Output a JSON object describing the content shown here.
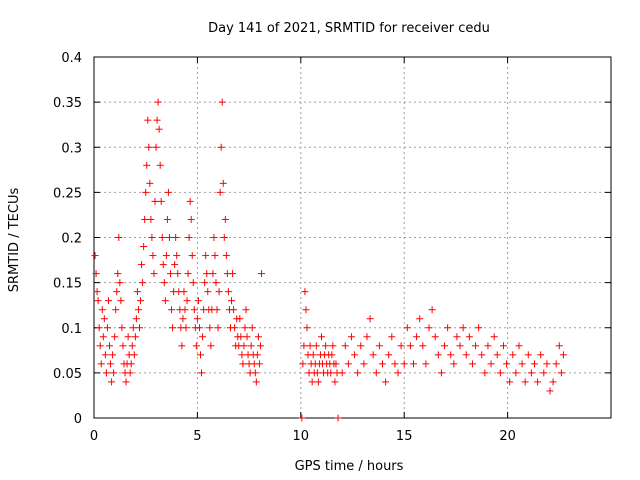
{
  "chart_data": {
    "type": "scatter",
    "title": "Day 141 of 2021, SRMTID for receiver cedu",
    "xlabel": "GPS time / hours",
    "ylabel": "SRMTID / TECUs",
    "xlim": [
      0,
      25
    ],
    "ylim": [
      0,
      0.4
    ],
    "xticks": [
      0,
      5,
      10,
      15,
      20
    ],
    "xtick_labels": [
      "0",
      "5",
      "10",
      "15",
      "20"
    ],
    "yticks": [
      0,
      0.05,
      0.1,
      0.15,
      0.2,
      0.25,
      0.3,
      0.35,
      0.4
    ],
    "ytick_labels": [
      "0",
      "0.05",
      "0.1",
      "0.15",
      "0.2",
      "0.25",
      "0.3",
      "0.35",
      "0.4"
    ],
    "grid": true,
    "marker": "plus",
    "series": [
      {
        "name": "SRMTID",
        "color": "#ff0000",
        "points": [
          [
            0.05,
            0.18
          ],
          [
            0.1,
            0.16
          ],
          [
            0.15,
            0.14
          ],
          [
            0.2,
            0.13
          ],
          [
            0.25,
            0.1
          ],
          [
            0.3,
            0.08
          ],
          [
            0.35,
            0.06
          ],
          [
            0.4,
            0.12
          ],
          [
            0.45,
            0.09
          ],
          [
            0.5,
            0.11
          ],
          [
            0.55,
            0.07
          ],
          [
            0.6,
            0.05
          ],
          [
            0.65,
            0.1
          ],
          [
            0.7,
            0.13
          ],
          [
            0.75,
            0.08
          ],
          [
            0.8,
            0.06
          ],
          [
            0.85,
            0.04
          ],
          [
            0.9,
            0.07
          ],
          [
            0.95,
            0.05
          ],
          [
            1.0,
            0.09
          ],
          [
            1.05,
            0.12
          ],
          [
            1.1,
            0.14
          ],
          [
            1.15,
            0.16
          ],
          [
            1.2,
            0.2
          ],
          [
            1.25,
            0.15
          ],
          [
            1.3,
            0.13
          ],
          [
            1.35,
            0.1
          ],
          [
            1.4,
            0.08
          ],
          [
            1.45,
            0.06
          ],
          [
            1.5,
            0.05
          ],
          [
            1.55,
            0.04
          ],
          [
            1.6,
            0.06
          ],
          [
            1.65,
            0.09
          ],
          [
            1.7,
            0.07
          ],
          [
            1.75,
            0.05
          ],
          [
            1.8,
            0.06
          ],
          [
            1.85,
            0.08
          ],
          [
            1.9,
            0.1
          ],
          [
            1.95,
            0.07
          ],
          [
            2.0,
            0.09
          ],
          [
            2.05,
            0.11
          ],
          [
            2.1,
            0.14
          ],
          [
            2.15,
            0.12
          ],
          [
            2.2,
            0.1
          ],
          [
            2.25,
            0.13
          ],
          [
            2.3,
            0.17
          ],
          [
            2.35,
            0.15
          ],
          [
            2.4,
            0.19
          ],
          [
            2.45,
            0.22
          ],
          [
            2.5,
            0.25
          ],
          [
            2.55,
            0.28
          ],
          [
            2.6,
            0.33
          ],
          [
            2.65,
            0.3
          ],
          [
            2.7,
            0.26
          ],
          [
            2.75,
            0.22
          ],
          [
            2.8,
            0.2
          ],
          [
            2.85,
            0.18
          ],
          [
            2.9,
            0.16
          ],
          [
            2.95,
            0.24
          ],
          [
            3.0,
            0.3
          ],
          [
            3.05,
            0.33
          ],
          [
            3.1,
            0.35
          ],
          [
            3.15,
            0.32
          ],
          [
            3.2,
            0.28
          ],
          [
            3.25,
            0.24
          ],
          [
            3.3,
            0.2
          ],
          [
            3.35,
            0.17
          ],
          [
            3.4,
            0.15
          ],
          [
            3.45,
            0.13
          ],
          [
            3.5,
            0.18
          ],
          [
            3.55,
            0.22
          ],
          [
            3.6,
            0.25
          ],
          [
            3.65,
            0.2
          ],
          [
            3.7,
            0.16
          ],
          [
            3.75,
            0.12
          ],
          [
            3.8,
            0.1
          ],
          [
            3.85,
            0.14
          ],
          [
            3.9,
            0.17
          ],
          [
            3.95,
            0.2
          ],
          [
            4.0,
            0.18
          ],
          [
            4.05,
            0.16
          ],
          [
            4.1,
            0.14
          ],
          [
            4.15,
            0.12
          ],
          [
            4.2,
            0.1
          ],
          [
            4.25,
            0.08
          ],
          [
            4.3,
            0.11
          ],
          [
            4.35,
            0.14
          ],
          [
            4.4,
            0.12
          ],
          [
            4.45,
            0.1
          ],
          [
            4.5,
            0.13
          ],
          [
            4.55,
            0.16
          ],
          [
            4.6,
            0.2
          ],
          [
            4.65,
            0.24
          ],
          [
            4.7,
            0.22
          ],
          [
            4.75,
            0.18
          ],
          [
            4.8,
            0.15
          ],
          [
            4.85,
            0.12
          ],
          [
            4.9,
            0.1
          ],
          [
            4.95,
            0.08
          ],
          [
            5.0,
            0.11
          ],
          [
            5.05,
            0.13
          ],
          [
            5.1,
            0.1
          ],
          [
            5.15,
            0.07
          ],
          [
            5.2,
            0.05
          ],
          [
            5.25,
            0.09
          ],
          [
            5.3,
            0.12
          ],
          [
            5.35,
            0.15
          ],
          [
            5.4,
            0.18
          ],
          [
            5.45,
            0.16
          ],
          [
            5.5,
            0.14
          ],
          [
            5.55,
            0.12
          ],
          [
            5.6,
            0.1
          ],
          [
            5.65,
            0.08
          ],
          [
            5.7,
            0.12
          ],
          [
            5.75,
            0.16
          ],
          [
            5.8,
            0.2
          ],
          [
            5.85,
            0.18
          ],
          [
            5.9,
            0.15
          ],
          [
            5.95,
            0.12
          ],
          [
            6.0,
            0.1
          ],
          [
            6.05,
            0.14
          ],
          [
            6.1,
            0.25
          ],
          [
            6.15,
            0.3
          ],
          [
            6.2,
            0.35
          ],
          [
            6.25,
            0.26
          ],
          [
            6.3,
            0.2
          ],
          [
            6.35,
            0.22
          ],
          [
            6.4,
            0.18
          ],
          [
            6.45,
            0.16
          ],
          [
            6.5,
            0.14
          ],
          [
            6.55,
            0.12
          ],
          [
            6.6,
            0.1
          ],
          [
            6.65,
            0.13
          ],
          [
            6.7,
            0.16
          ],
          [
            6.75,
            0.12
          ],
          [
            6.8,
            0.1
          ],
          [
            6.85,
            0.08
          ],
          [
            6.9,
            0.11
          ],
          [
            6.95,
            0.09
          ],
          [
            7.0,
            0.08
          ],
          [
            7.05,
            0.11
          ],
          [
            7.1,
            0.09
          ],
          [
            7.15,
            0.07
          ],
          [
            7.2,
            0.06
          ],
          [
            7.25,
            0.08
          ],
          [
            7.3,
            0.1
          ],
          [
            7.35,
            0.12
          ],
          [
            7.4,
            0.09
          ],
          [
            7.45,
            0.07
          ],
          [
            7.5,
            0.06
          ],
          [
            7.55,
            0.05
          ],
          [
            7.6,
            0.08
          ],
          [
            7.65,
            0.1
          ],
          [
            7.7,
            0.07
          ],
          [
            7.75,
            0.06
          ],
          [
            7.8,
            0.05
          ],
          [
            7.85,
            0.04
          ],
          [
            7.9,
            0.07
          ],
          [
            7.95,
            0.09
          ],
          [
            8.0,
            0.06
          ],
          [
            8.05,
            0.08
          ],
          [
            8.1,
            0.16
          ],
          [
            10.05,
            0.0
          ],
          [
            11.8,
            0.0
          ],
          [
            10.1,
            0.06
          ],
          [
            10.15,
            0.08
          ],
          [
            10.2,
            0.14
          ],
          [
            10.25,
            0.12
          ],
          [
            10.3,
            0.1
          ],
          [
            10.35,
            0.07
          ],
          [
            10.4,
            0.05
          ],
          [
            10.45,
            0.08
          ],
          [
            10.5,
            0.06
          ],
          [
            10.55,
            0.04
          ],
          [
            10.6,
            0.07
          ],
          [
            10.65,
            0.05
          ],
          [
            10.7,
            0.06
          ],
          [
            10.75,
            0.08
          ],
          [
            10.8,
            0.05
          ],
          [
            10.85,
            0.04
          ],
          [
            10.9,
            0.06
          ],
          [
            10.95,
            0.07
          ],
          [
            11.0,
            0.09
          ],
          [
            11.05,
            0.06
          ],
          [
            11.1,
            0.05
          ],
          [
            11.15,
            0.07
          ],
          [
            11.2,
            0.08
          ],
          [
            11.25,
            0.06
          ],
          [
            11.3,
            0.05
          ],
          [
            11.35,
            0.07
          ],
          [
            11.4,
            0.06
          ],
          [
            11.45,
            0.05
          ],
          [
            11.5,
            0.07
          ],
          [
            11.55,
            0.08
          ],
          [
            11.6,
            0.06
          ],
          [
            11.65,
            0.04
          ],
          [
            11.7,
            0.06
          ],
          [
            11.75,
            0.05
          ],
          [
            12.0,
            0.05
          ],
          [
            12.15,
            0.08
          ],
          [
            12.3,
            0.06
          ],
          [
            12.45,
            0.09
          ],
          [
            12.6,
            0.07
          ],
          [
            12.75,
            0.05
          ],
          [
            12.9,
            0.08
          ],
          [
            13.05,
            0.06
          ],
          [
            13.2,
            0.09
          ],
          [
            13.35,
            0.11
          ],
          [
            13.5,
            0.07
          ],
          [
            13.65,
            0.05
          ],
          [
            13.8,
            0.08
          ],
          [
            13.95,
            0.06
          ],
          [
            14.1,
            0.04
          ],
          [
            14.25,
            0.07
          ],
          [
            14.4,
            0.09
          ],
          [
            14.55,
            0.06
          ],
          [
            14.7,
            0.05
          ],
          [
            14.85,
            0.08
          ],
          [
            15.0,
            0.06
          ],
          [
            15.15,
            0.1
          ],
          [
            15.3,
            0.08
          ],
          [
            15.45,
            0.06
          ],
          [
            15.6,
            0.09
          ],
          [
            15.75,
            0.11
          ],
          [
            15.9,
            0.08
          ],
          [
            16.05,
            0.06
          ],
          [
            16.2,
            0.1
          ],
          [
            16.35,
            0.12
          ],
          [
            16.5,
            0.09
          ],
          [
            16.65,
            0.07
          ],
          [
            16.8,
            0.05
          ],
          [
            16.95,
            0.08
          ],
          [
            17.1,
            0.1
          ],
          [
            17.25,
            0.07
          ],
          [
            17.4,
            0.06
          ],
          [
            17.55,
            0.09
          ],
          [
            17.7,
            0.08
          ],
          [
            17.85,
            0.1
          ],
          [
            18.0,
            0.07
          ],
          [
            18.15,
            0.09
          ],
          [
            18.3,
            0.06
          ],
          [
            18.45,
            0.08
          ],
          [
            18.6,
            0.1
          ],
          [
            18.75,
            0.07
          ],
          [
            18.9,
            0.05
          ],
          [
            19.05,
            0.08
          ],
          [
            19.2,
            0.06
          ],
          [
            19.35,
            0.09
          ],
          [
            19.5,
            0.07
          ],
          [
            19.65,
            0.05
          ],
          [
            19.8,
            0.08
          ],
          [
            19.95,
            0.06
          ],
          [
            20.1,
            0.04
          ],
          [
            20.25,
            0.07
          ],
          [
            20.4,
            0.05
          ],
          [
            20.55,
            0.08
          ],
          [
            20.7,
            0.06
          ],
          [
            20.85,
            0.04
          ],
          [
            21.0,
            0.07
          ],
          [
            21.15,
            0.05
          ],
          [
            21.3,
            0.06
          ],
          [
            21.45,
            0.04
          ],
          [
            21.6,
            0.07
          ],
          [
            21.75,
            0.05
          ],
          [
            21.9,
            0.06
          ],
          [
            22.05,
            0.03
          ],
          [
            22.2,
            0.04
          ],
          [
            22.35,
            0.06
          ],
          [
            22.5,
            0.08
          ],
          [
            22.6,
            0.05
          ],
          [
            22.7,
            0.07
          ]
        ]
      }
    ]
  }
}
